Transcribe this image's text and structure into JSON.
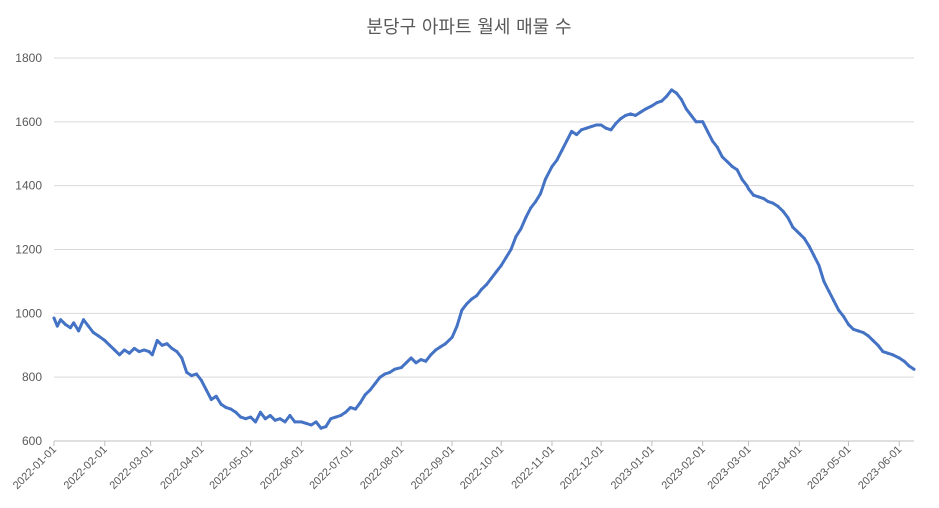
{
  "chart_data": {
    "type": "line",
    "title": "분당구 아파트 월세 매물 수",
    "xlabel": "",
    "ylabel": "",
    "ylim": [
      600,
      1800
    ],
    "yticks": [
      600,
      800,
      1000,
      1200,
      1400,
      1600,
      1800
    ],
    "grid": "horizontal",
    "legend": "none",
    "color": "#4472C4",
    "xticks": [
      "2022-01-01",
      "2022-02-01",
      "2022-03-01",
      "2022-04-01",
      "2022-05-01",
      "2022-06-01",
      "2022-07-01",
      "2022-08-01",
      "2022-09-01",
      "2022-10-01",
      "2022-11-01",
      "2022-12-01",
      "2023-01-01",
      "2023-02-01",
      "2023-03-01",
      "2023-04-01",
      "2023-05-01",
      "2023-06-01"
    ],
    "series": [
      {
        "values": [
          [
            "2022-01-01",
            985
          ],
          [
            "2022-01-03",
            960
          ],
          [
            "2022-01-05",
            980
          ],
          [
            "2022-01-08",
            965
          ],
          [
            "2022-01-11",
            955
          ],
          [
            "2022-01-13",
            970
          ],
          [
            "2022-01-16",
            945
          ],
          [
            "2022-01-19",
            980
          ],
          [
            "2022-01-22",
            960
          ],
          [
            "2022-01-25",
            940
          ],
          [
            "2022-01-28",
            930
          ],
          [
            "2022-02-01",
            915
          ],
          [
            "2022-02-04",
            900
          ],
          [
            "2022-02-07",
            885
          ],
          [
            "2022-02-10",
            870
          ],
          [
            "2022-02-13",
            885
          ],
          [
            "2022-02-16",
            875
          ],
          [
            "2022-02-19",
            890
          ],
          [
            "2022-02-22",
            880
          ],
          [
            "2022-02-25",
            885
          ],
          [
            "2022-02-28",
            880
          ],
          [
            "2022-03-02",
            870
          ],
          [
            "2022-03-05",
            915
          ],
          [
            "2022-03-08",
            900
          ],
          [
            "2022-03-11",
            905
          ],
          [
            "2022-03-14",
            890
          ],
          [
            "2022-03-17",
            880
          ],
          [
            "2022-03-20",
            860
          ],
          [
            "2022-03-23",
            815
          ],
          [
            "2022-03-26",
            805
          ],
          [
            "2022-03-29",
            810
          ],
          [
            "2022-04-01",
            790
          ],
          [
            "2022-04-04",
            760
          ],
          [
            "2022-04-07",
            730
          ],
          [
            "2022-04-10",
            740
          ],
          [
            "2022-04-13",
            715
          ],
          [
            "2022-04-16",
            705
          ],
          [
            "2022-04-19",
            700
          ],
          [
            "2022-04-22",
            690
          ],
          [
            "2022-04-25",
            675
          ],
          [
            "2022-04-28",
            670
          ],
          [
            "2022-05-01",
            675
          ],
          [
            "2022-05-04",
            660
          ],
          [
            "2022-05-07",
            690
          ],
          [
            "2022-05-10",
            670
          ],
          [
            "2022-05-13",
            680
          ],
          [
            "2022-05-16",
            665
          ],
          [
            "2022-05-19",
            670
          ],
          [
            "2022-05-22",
            660
          ],
          [
            "2022-05-25",
            680
          ],
          [
            "2022-05-28",
            660
          ],
          [
            "2022-06-01",
            660
          ],
          [
            "2022-06-04",
            655
          ],
          [
            "2022-06-07",
            650
          ],
          [
            "2022-06-10",
            660
          ],
          [
            "2022-06-13",
            640
          ],
          [
            "2022-06-16",
            645
          ],
          [
            "2022-06-19",
            670
          ],
          [
            "2022-06-22",
            675
          ],
          [
            "2022-06-25",
            680
          ],
          [
            "2022-06-28",
            690
          ],
          [
            "2022-07-01",
            705
          ],
          [
            "2022-07-04",
            700
          ],
          [
            "2022-07-07",
            720
          ],
          [
            "2022-07-10",
            745
          ],
          [
            "2022-07-13",
            760
          ],
          [
            "2022-07-16",
            780
          ],
          [
            "2022-07-19",
            800
          ],
          [
            "2022-07-22",
            810
          ],
          [
            "2022-07-25",
            815
          ],
          [
            "2022-07-28",
            825
          ],
          [
            "2022-08-01",
            830
          ],
          [
            "2022-08-04",
            845
          ],
          [
            "2022-08-07",
            860
          ],
          [
            "2022-08-10",
            845
          ],
          [
            "2022-08-13",
            855
          ],
          [
            "2022-08-16",
            850
          ],
          [
            "2022-08-19",
            870
          ],
          [
            "2022-08-22",
            885
          ],
          [
            "2022-08-25",
            895
          ],
          [
            "2022-08-28",
            905
          ],
          [
            "2022-09-01",
            925
          ],
          [
            "2022-09-04",
            960
          ],
          [
            "2022-09-07",
            1010
          ],
          [
            "2022-09-10",
            1030
          ],
          [
            "2022-09-13",
            1045
          ],
          [
            "2022-09-16",
            1055
          ],
          [
            "2022-09-19",
            1075
          ],
          [
            "2022-09-22",
            1090
          ],
          [
            "2022-09-25",
            1110
          ],
          [
            "2022-09-28",
            1130
          ],
          [
            "2022-10-01",
            1150
          ],
          [
            "2022-10-04",
            1175
          ],
          [
            "2022-10-07",
            1200
          ],
          [
            "2022-10-10",
            1240
          ],
          [
            "2022-10-13",
            1265
          ],
          [
            "2022-10-16",
            1300
          ],
          [
            "2022-10-19",
            1330
          ],
          [
            "2022-10-22",
            1350
          ],
          [
            "2022-10-25",
            1375
          ],
          [
            "2022-10-28",
            1420
          ],
          [
            "2022-11-01",
            1460
          ],
          [
            "2022-11-04",
            1480
          ],
          [
            "2022-11-07",
            1510
          ],
          [
            "2022-11-10",
            1540
          ],
          [
            "2022-11-13",
            1570
          ],
          [
            "2022-11-16",
            1560
          ],
          [
            "2022-11-19",
            1575
          ],
          [
            "2022-11-22",
            1580
          ],
          [
            "2022-11-25",
            1585
          ],
          [
            "2022-11-28",
            1590
          ],
          [
            "2022-12-01",
            1590
          ],
          [
            "2022-12-04",
            1580
          ],
          [
            "2022-12-07",
            1575
          ],
          [
            "2022-12-10",
            1595
          ],
          [
            "2022-12-13",
            1610
          ],
          [
            "2022-12-16",
            1620
          ],
          [
            "2022-12-19",
            1625
          ],
          [
            "2022-12-22",
            1620
          ],
          [
            "2022-12-25",
            1630
          ],
          [
            "2022-12-28",
            1640
          ],
          [
            "2023-01-01",
            1650
          ],
          [
            "2023-01-04",
            1660
          ],
          [
            "2023-01-07",
            1665
          ],
          [
            "2023-01-10",
            1680
          ],
          [
            "2023-01-13",
            1700
          ],
          [
            "2023-01-16",
            1690
          ],
          [
            "2023-01-19",
            1670
          ],
          [
            "2023-01-22",
            1640
          ],
          [
            "2023-01-25",
            1620
          ],
          [
            "2023-01-28",
            1600
          ],
          [
            "2023-02-01",
            1600
          ],
          [
            "2023-02-04",
            1570
          ],
          [
            "2023-02-07",
            1540
          ],
          [
            "2023-02-10",
            1520
          ],
          [
            "2023-02-13",
            1490
          ],
          [
            "2023-02-16",
            1475
          ],
          [
            "2023-02-19",
            1460
          ],
          [
            "2023-02-22",
            1450
          ],
          [
            "2023-02-25",
            1420
          ],
          [
            "2023-02-28",
            1400
          ],
          [
            "2023-03-01",
            1390
          ],
          [
            "2023-03-04",
            1370
          ],
          [
            "2023-03-07",
            1365
          ],
          [
            "2023-03-10",
            1360
          ],
          [
            "2023-03-13",
            1350
          ],
          [
            "2023-03-16",
            1345
          ],
          [
            "2023-03-19",
            1335
          ],
          [
            "2023-03-22",
            1320
          ],
          [
            "2023-03-25",
            1300
          ],
          [
            "2023-03-28",
            1270
          ],
          [
            "2023-04-01",
            1250
          ],
          [
            "2023-04-04",
            1235
          ],
          [
            "2023-04-07",
            1210
          ],
          [
            "2023-04-10",
            1180
          ],
          [
            "2023-04-13",
            1150
          ],
          [
            "2023-04-16",
            1100
          ],
          [
            "2023-04-19",
            1070
          ],
          [
            "2023-04-22",
            1040
          ],
          [
            "2023-04-25",
            1010
          ],
          [
            "2023-04-28",
            990
          ],
          [
            "2023-05-01",
            965
          ],
          [
            "2023-05-04",
            950
          ],
          [
            "2023-05-07",
            945
          ],
          [
            "2023-05-10",
            940
          ],
          [
            "2023-05-13",
            930
          ],
          [
            "2023-05-16",
            915
          ],
          [
            "2023-05-19",
            900
          ],
          [
            "2023-05-22",
            880
          ],
          [
            "2023-05-25",
            875
          ],
          [
            "2023-05-28",
            870
          ],
          [
            "2023-06-01",
            860
          ],
          [
            "2023-06-04",
            850
          ],
          [
            "2023-06-07",
            835
          ],
          [
            "2023-06-10",
            825
          ]
        ]
      }
    ]
  }
}
